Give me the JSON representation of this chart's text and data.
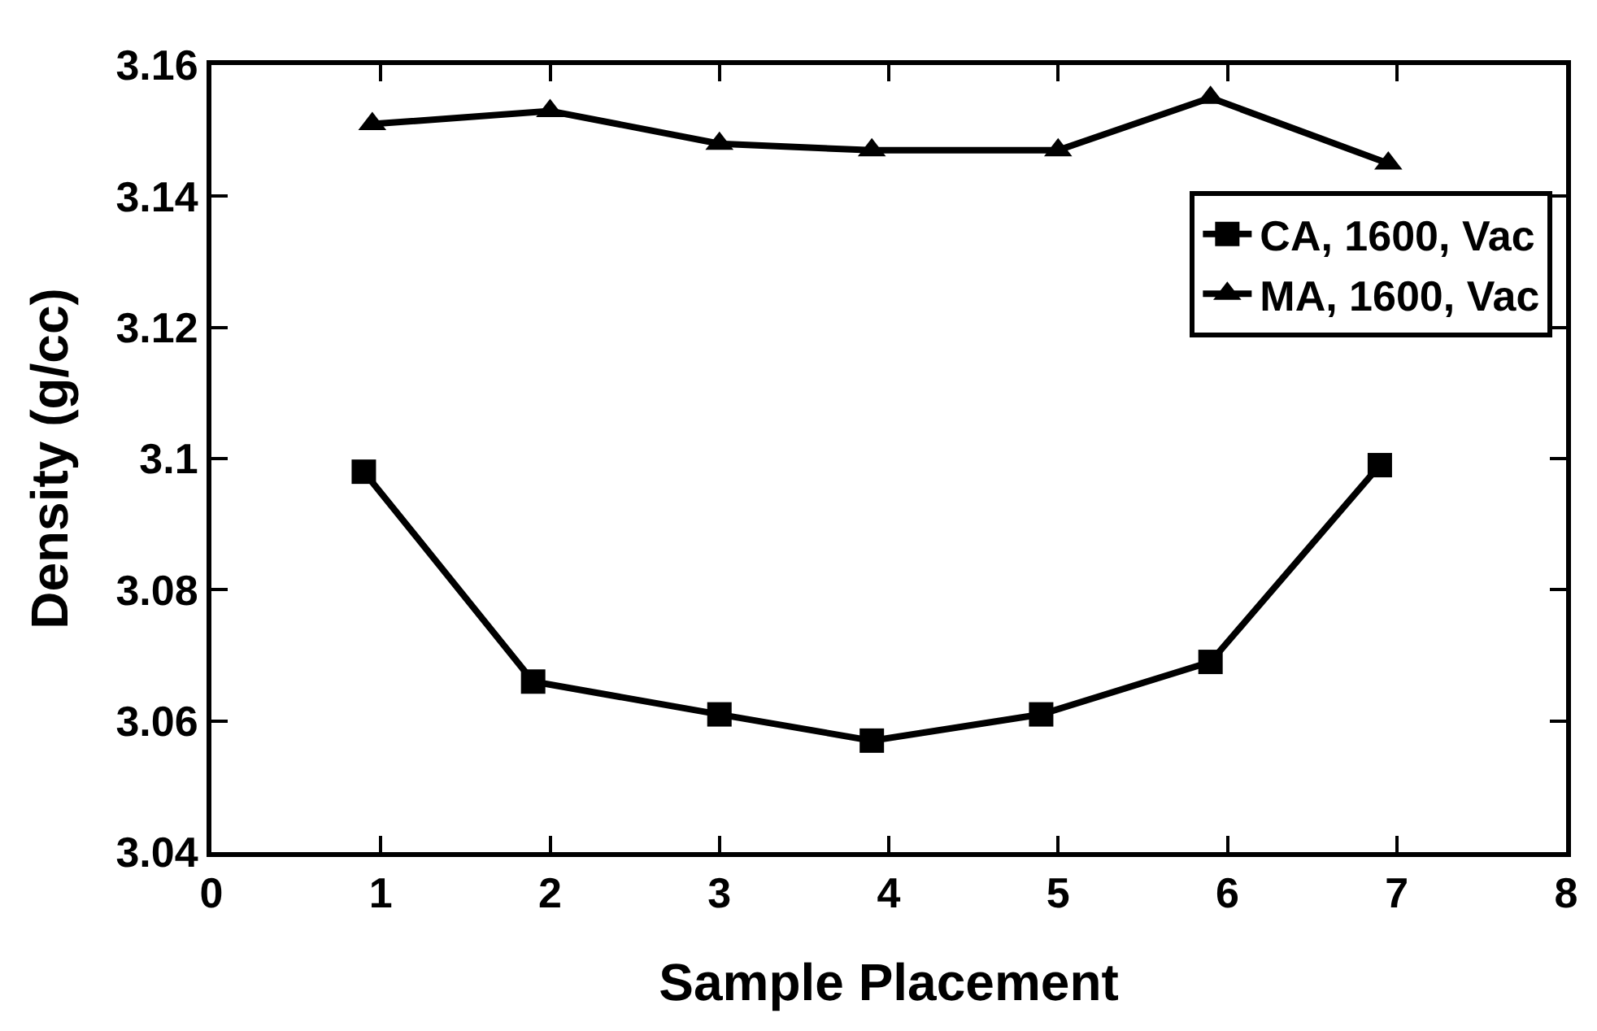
{
  "chart_data": {
    "type": "line",
    "xlabel": "Sample Placement",
    "ylabel": "Density (g/cc)",
    "xlim": [
      0,
      8
    ],
    "xticks": [
      0,
      1,
      2,
      3,
      4,
      5,
      6,
      7,
      8
    ],
    "ylim": [
      3.04,
      3.16
    ],
    "yticks": [
      3.04,
      3.06,
      3.08,
      {
        "value": 3.1,
        "label": "3.1"
      },
      3.12,
      3.14,
      3.16
    ],
    "legend": "top right",
    "line_style": "solid",
    "series": [
      {
        "name": "CA, 1600, Vac",
        "color": "#000000",
        "marker": "square",
        "x": [
          0.9,
          1.9,
          3.0,
          3.9,
          4.9,
          5.9,
          6.9
        ],
        "values": [
          3.098,
          3.066,
          3.061,
          3.057,
          3.061,
          3.069,
          3.099
        ]
      },
      {
        "name": "MA, 1600, Vac",
        "color": "#000000",
        "marker": "triangle",
        "x": [
          0.95,
          2.0,
          3.0,
          3.9,
          5.0,
          5.9,
          6.95
        ],
        "values": [
          3.151,
          3.153,
          3.148,
          3.147,
          3.147,
          3.155,
          3.145
        ]
      }
    ]
  }
}
